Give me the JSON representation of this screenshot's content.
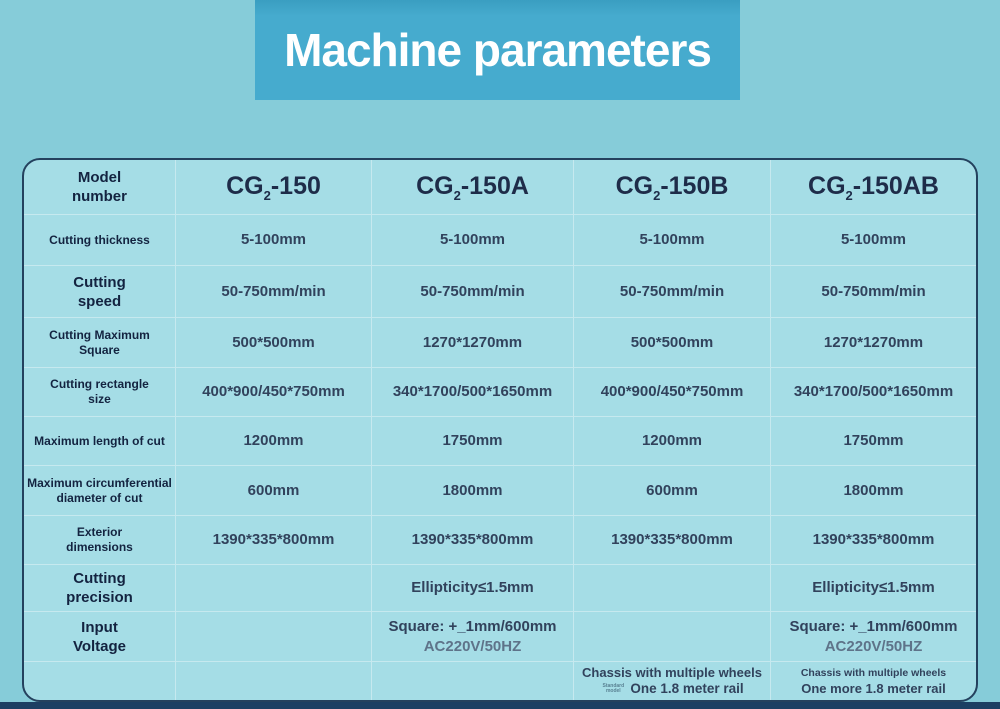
{
  "page": {
    "background_color": "#86ccd9",
    "banner_color": "#46abce",
    "table_background_color": "#a5dde6",
    "table_border_color": "#24415e",
    "bottom_bar_color": "#1c3f63",
    "text_color": "#132340"
  },
  "title": "Machine parameters",
  "table": {
    "header": {
      "label": {
        "l1": "Model",
        "l2": "number"
      },
      "models": [
        {
          "base": "CG",
          "sub": "2",
          "rest": "-150"
        },
        {
          "base": "CG",
          "sub": "2",
          "rest": "-150A"
        },
        {
          "base": "CG",
          "sub": "2",
          "rest": "-150B"
        },
        {
          "base": "CG",
          "sub": "2",
          "rest": "-150AB"
        }
      ]
    },
    "rows": [
      {
        "label": {
          "l1": "Cutting thickness"
        },
        "values": [
          {
            "l1": "5-100mm"
          },
          {
            "l1": "5-100mm"
          },
          {
            "l1": "5-100mm"
          },
          {
            "l1": "5-100mm"
          }
        ]
      },
      {
        "label": {
          "l1": "Cutting",
          "l2": "speed"
        },
        "values": [
          {
            "l1": "50-750mm/min"
          },
          {
            "l1": "50-750mm/min"
          },
          {
            "l1": "50-750mm/min"
          },
          {
            "l1": "50-750mm/min"
          }
        ]
      },
      {
        "label": {
          "l1": "Cutting Maximum",
          "l2": "Square"
        },
        "values": [
          {
            "l1": "500*500mm"
          },
          {
            "l1": "1270*1270mm"
          },
          {
            "l1": "500*500mm"
          },
          {
            "l1": "1270*1270mm"
          }
        ]
      },
      {
        "label": {
          "l1": "Cutting rectangle",
          "l2": "size"
        },
        "values": [
          {
            "l1": "400*900/450*750mm"
          },
          {
            "l1": "340*1700/500*1650mm"
          },
          {
            "l1": "400*900/450*750mm"
          },
          {
            "l1": "340*1700/500*1650mm"
          }
        ]
      },
      {
        "label": {
          "l1": "Maximum length of cut"
        },
        "values": [
          {
            "l1": "1200mm"
          },
          {
            "l1": "1750mm"
          },
          {
            "l1": "1200mm"
          },
          {
            "l1": "1750mm"
          }
        ]
      },
      {
        "label": {
          "l1": "Maximum circumferential",
          "l2": "diameter of cut"
        },
        "values": [
          {
            "l1": "600mm"
          },
          {
            "l1": "1800mm"
          },
          {
            "l1": "600mm"
          },
          {
            "l1": "1800mm"
          }
        ]
      },
      {
        "label": {
          "l1": "Exterior",
          "l2": "dimensions"
        },
        "values": [
          {
            "l1": "1390*335*800mm"
          },
          {
            "l1": "1390*335*800mm"
          },
          {
            "l1": "1390*335*800mm"
          },
          {
            "l1": "1390*335*800mm"
          }
        ]
      },
      {
        "label": {
          "l1": "Cutting",
          "l2": "precision"
        },
        "values": [
          {},
          {
            "l1": "Ellipticity≤1.5mm"
          },
          {},
          {
            "l1": "Ellipticity≤1.5mm"
          }
        ]
      },
      {
        "label": {
          "l1": "Input",
          "l2": "Voltage"
        },
        "values": [
          {},
          {
            "l1": "Square: +_1mm/600mm",
            "l2": "AC220V/50HZ"
          },
          {},
          {
            "l1": "Square: +_1mm/600mm",
            "l2": "AC220V/50HZ"
          }
        ]
      },
      {
        "label": {},
        "values": [
          {},
          {},
          {
            "l1": "Chassis with multiple wheels",
            "l2": "One 1.8 meter rail",
            "note": "Standard model"
          },
          {
            "l1": "Chassis with multiple wheels",
            "l2": "One more 1.8 meter rail"
          }
        ]
      }
    ]
  }
}
